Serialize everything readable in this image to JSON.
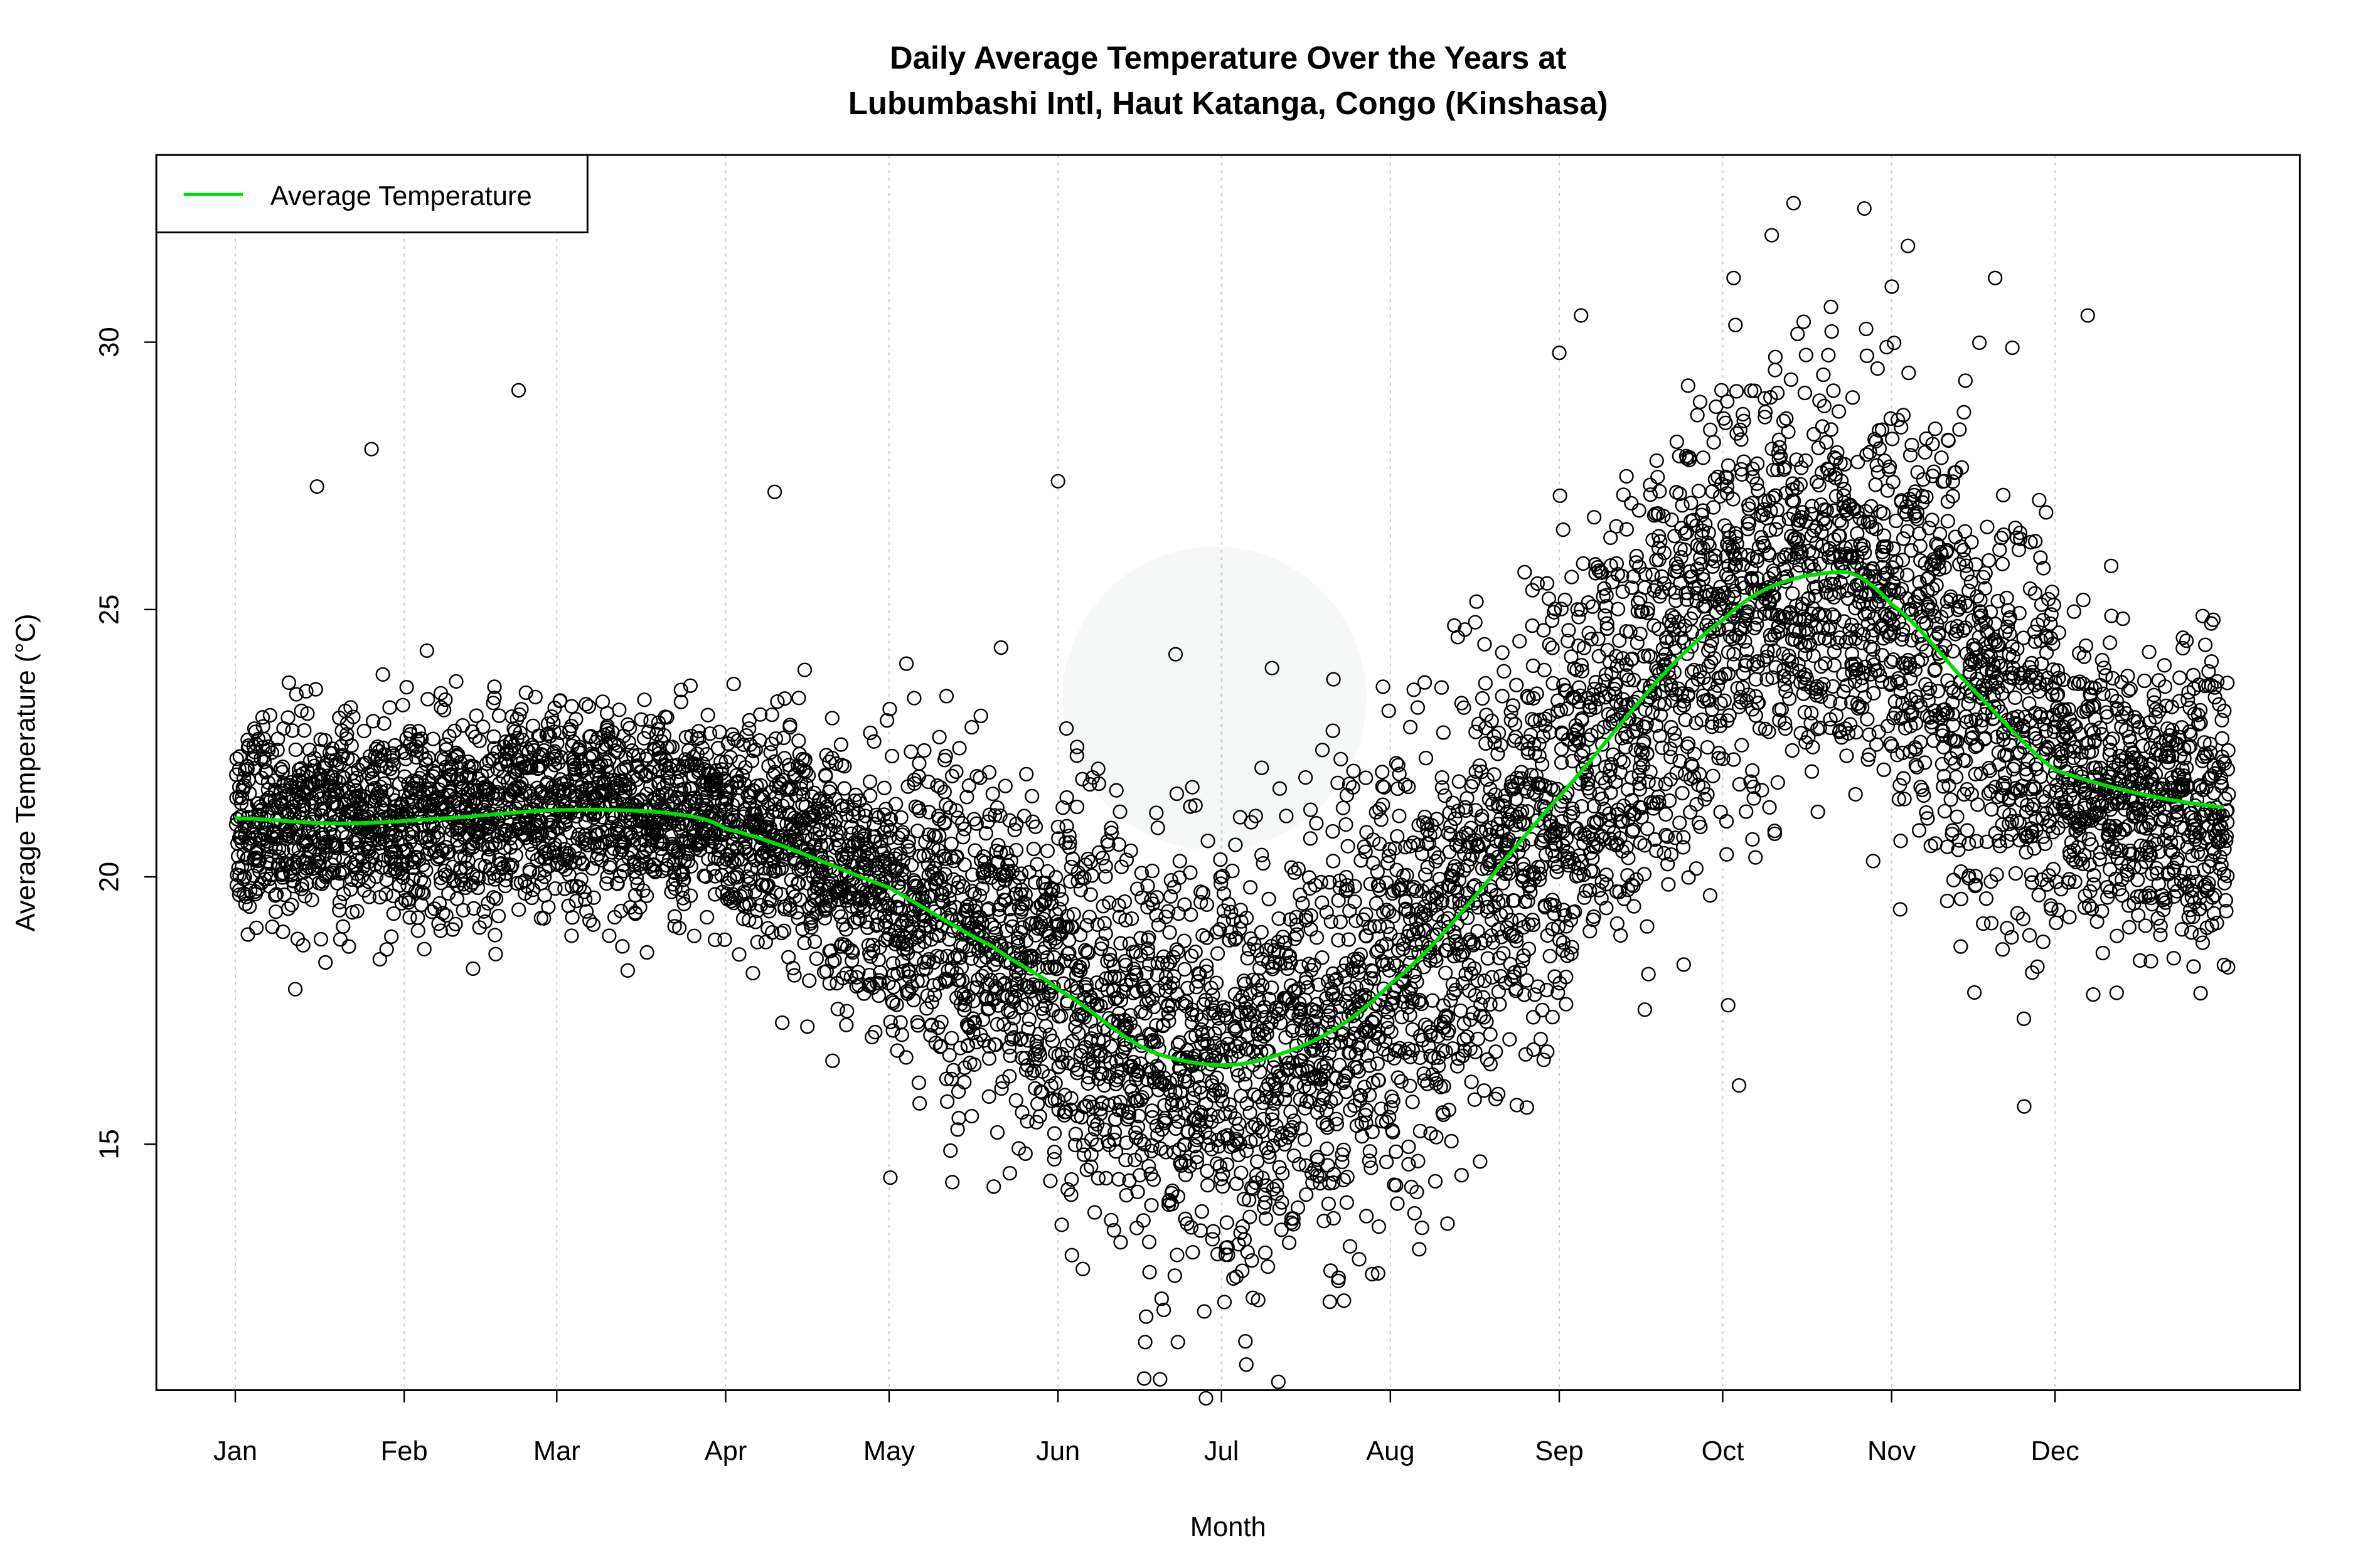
{
  "chart_data": {
    "type": "scatter",
    "title_line1": "Daily Average Temperature Over the Years at",
    "title_line2": "Lubumbashi Intl, Haut Katanga, Congo (Kinshasa)",
    "xlabel": "Month",
    "ylabel": "Average Temperature (°C)",
    "x_unit": "day of year",
    "xlim": [
      1,
      366
    ],
    "ylim": [
      10.4,
      33.5
    ],
    "x_ticks": [
      {
        "label": "Jan",
        "day": 1
      },
      {
        "label": "Feb",
        "day": 32
      },
      {
        "label": "Mar",
        "day": 60
      },
      {
        "label": "Apr",
        "day": 91
      },
      {
        "label": "May",
        "day": 121
      },
      {
        "label": "Jun",
        "day": 152
      },
      {
        "label": "Jul",
        "day": 182
      },
      {
        "label": "Aug",
        "day": 213
      },
      {
        "label": "Sep",
        "day": 244
      },
      {
        "label": "Oct",
        "day": 274
      },
      {
        "label": "Nov",
        "day": 305
      },
      {
        "label": "Dec",
        "day": 335
      }
    ],
    "y_ticks": [
      15,
      20,
      25,
      30
    ],
    "grid": "vertical dotted at month ticks",
    "legend": {
      "placement": "top-left",
      "entries": [
        {
          "label": "Average Temperature",
          "color": "#00dd00"
        }
      ]
    },
    "smooth_series": {
      "name": "Average Temperature",
      "color": "#00dd00",
      "x": [
        1,
        20,
        40,
        60,
        80,
        91,
        121,
        140,
        152,
        170,
        190,
        213,
        244,
        274,
        295,
        305,
        320,
        335,
        366
      ],
      "y": [
        21.1,
        21.0,
        21.1,
        21.25,
        21.2,
        20.9,
        19.8,
        18.7,
        17.9,
        16.7,
        16.6,
        18.0,
        21.5,
        24.8,
        25.7,
        25.1,
        23.5,
        22.0,
        21.3
      ]
    },
    "scatter_spread_by_month": {
      "months": [
        "Jan",
        "Feb",
        "Mar",
        "Apr",
        "May",
        "Jun",
        "Jul",
        "Aug",
        "Sep",
        "Oct",
        "Nov",
        "Dec"
      ],
      "std_dev": [
        0.9,
        1.0,
        0.9,
        1.1,
        1.6,
        2.0,
        2.2,
        2.0,
        2.0,
        1.9,
        2.0,
        1.3
      ]
    },
    "scatter_outliers": [
      {
        "day": 53,
        "temp": 29.1
      },
      {
        "day": 26,
        "temp": 28.0
      },
      {
        "day": 16,
        "temp": 27.3
      },
      {
        "day": 106,
        "temp": 17.2
      },
      {
        "day": 287,
        "temp": 32.6
      },
      {
        "day": 300,
        "temp": 32.5
      },
      {
        "day": 283,
        "temp": 32.0
      },
      {
        "day": 308,
        "temp": 31.8
      },
      {
        "day": 276,
        "temp": 31.2
      },
      {
        "day": 324,
        "temp": 31.2
      },
      {
        "day": 341,
        "temp": 30.5
      },
      {
        "day": 248,
        "temp": 30.5
      },
      {
        "day": 174,
        "temp": 11.3
      },
      {
        "day": 168,
        "temp": 11.3
      },
      {
        "day": 277,
        "temp": 16.1
      },
      {
        "day": 275,
        "temp": 17.6
      },
      {
        "day": 96,
        "temp": 18.2
      },
      {
        "day": 342,
        "temp": 17.8
      },
      {
        "day": 152,
        "temp": 27.4
      },
      {
        "day": 100,
        "temp": 27.2
      },
      {
        "day": 244,
        "temp": 29.8
      }
    ]
  }
}
